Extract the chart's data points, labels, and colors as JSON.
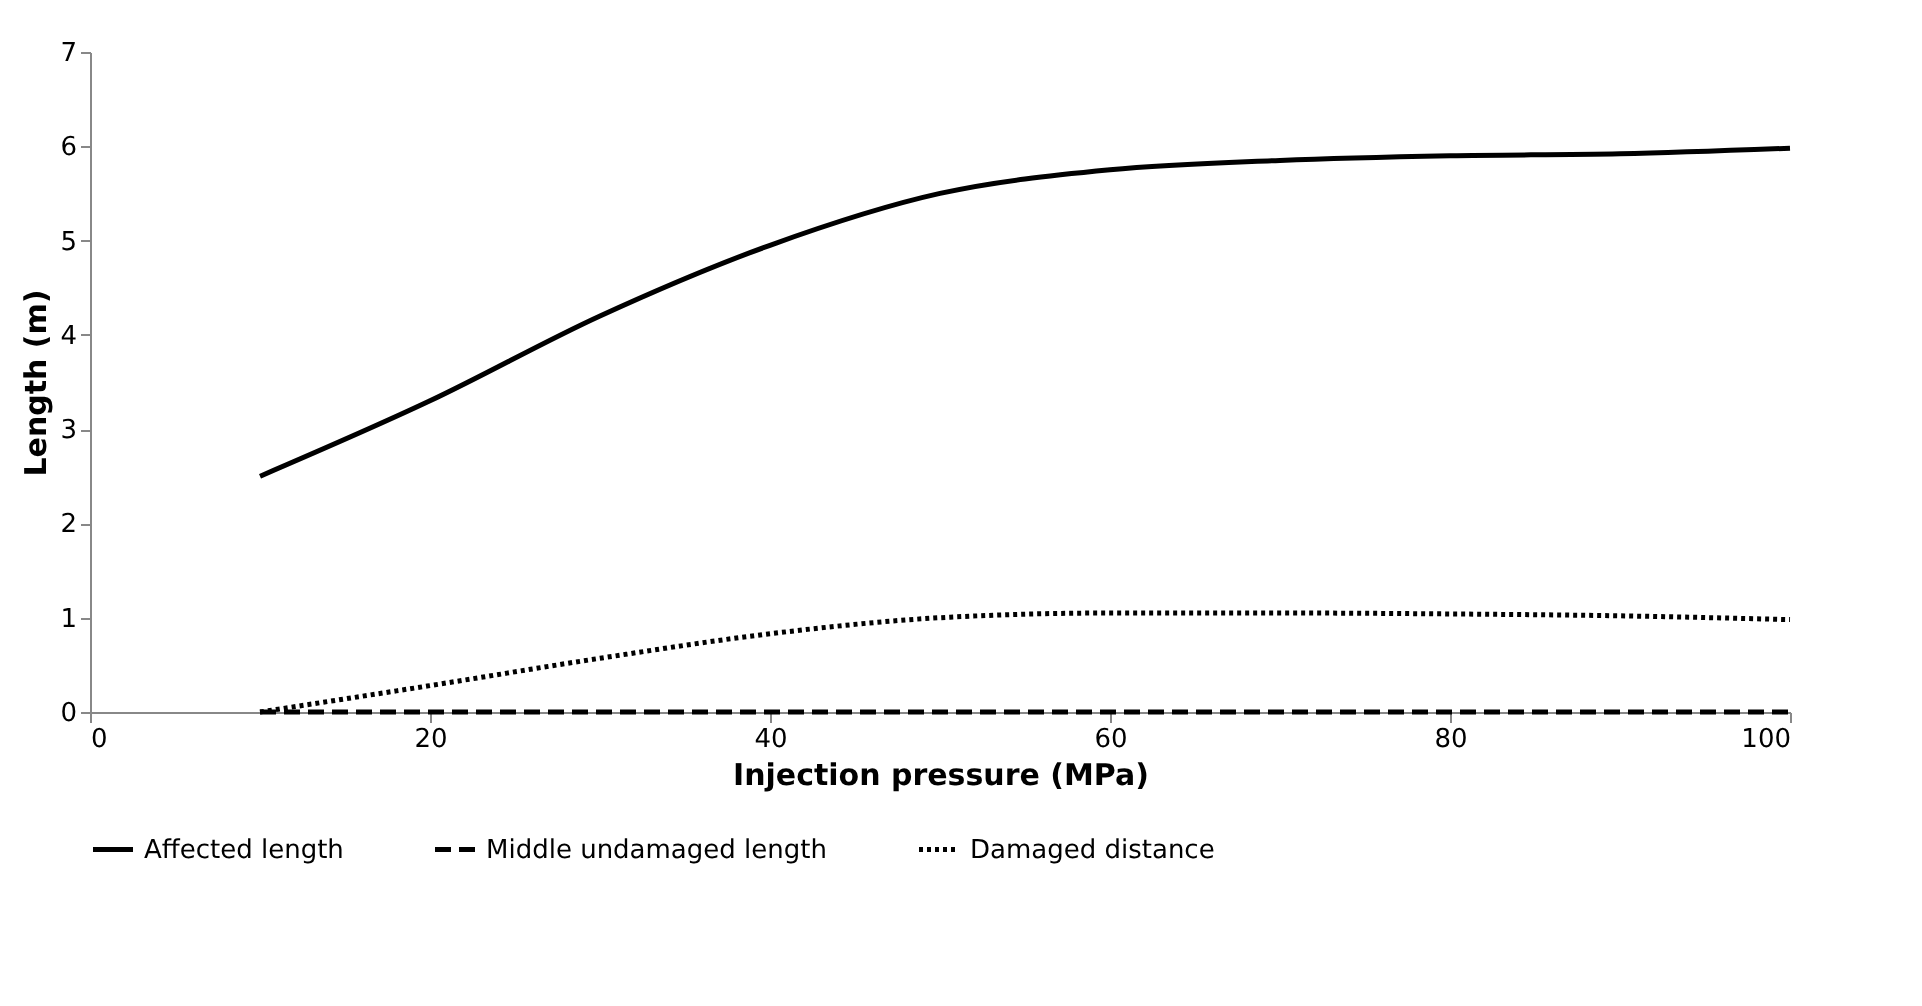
{
  "chart_data": {
    "type": "line",
    "xlabel": "Injection pressure (MPa)",
    "ylabel": "Length (m)",
    "x": [
      10,
      20,
      30,
      40,
      50,
      60,
      70,
      80,
      90,
      100
    ],
    "series": [
      {
        "name": "Affected length",
        "color": "#000000",
        "line_style": "solid",
        "values": [
          2.5,
          3.3,
          4.2,
          4.95,
          5.5,
          5.75,
          5.85,
          5.9,
          5.92,
          5.98
        ]
      },
      {
        "name": "Middle undamaged length",
        "color": "#000000",
        "line_style": "dashed",
        "values": [
          0,
          0,
          0,
          0,
          0,
          0,
          0,
          0,
          0,
          0
        ]
      },
      {
        "name": "Damaged distance",
        "color": "#000000",
        "line_style": "dotted",
        "values": [
          0,
          0.28,
          0.57,
          0.83,
          1.0,
          1.05,
          1.05,
          1.04,
          1.02,
          0.98
        ]
      }
    ],
    "xlim": [
      0,
      100
    ],
    "xticks": [
      0,
      20,
      40,
      60,
      80,
      100
    ],
    "ylim": [
      0,
      7
    ],
    "yticks": [
      0,
      1,
      2,
      3,
      4,
      5,
      6,
      7
    ],
    "grid": false,
    "legend": "bottom",
    "marker": "none"
  }
}
